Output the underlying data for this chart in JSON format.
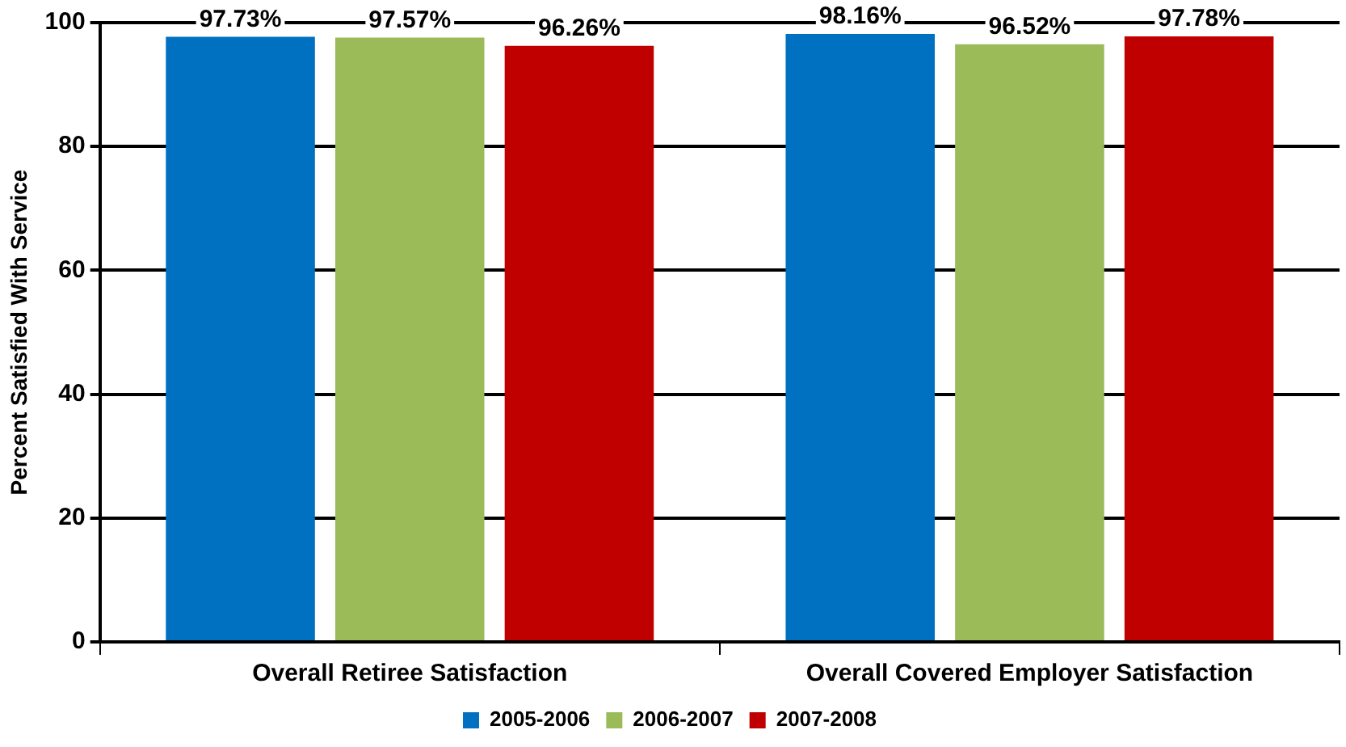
{
  "chart_data": {
    "type": "bar",
    "ylabel": "Percent Satisfied With Service",
    "categories": [
      "Overall Retiree Satisfaction",
      "Overall Covered Employer Satisfaction"
    ],
    "series": [
      {
        "name": "2005-2006",
        "color": "#0070c0",
        "values": [
          97.73,
          98.16
        ],
        "value_labels": [
          "97.73%",
          "98.16%"
        ]
      },
      {
        "name": "2006-2007",
        "color": "#9bbb59",
        "values": [
          97.57,
          96.52
        ],
        "value_labels": [
          "97.57%",
          "96.52%"
        ]
      },
      {
        "name": "2007-2008",
        "color": "#c00000",
        "values": [
          96.26,
          97.78
        ],
        "value_labels": [
          "96.26%",
          "97.78%"
        ]
      }
    ],
    "ylim": [
      0,
      100
    ],
    "yticks": [
      0,
      20,
      40,
      60,
      80,
      100
    ],
    "grid": "y",
    "legend": "bottom"
  }
}
